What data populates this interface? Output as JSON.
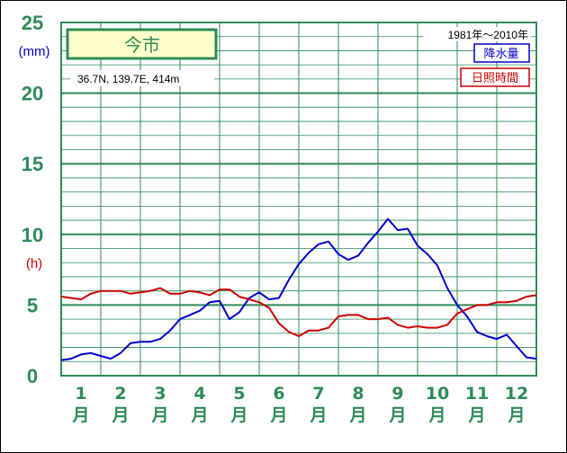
{
  "colors": {
    "grid": "#2e8b57",
    "precip": "#0000cc",
    "sunshine": "#cc0000",
    "title_bg": "#ffffcc"
  },
  "chart_data": {
    "type": "line",
    "title": "今市",
    "location_text": "36.7N,  139.7E,  414m",
    "period": "1981年〜2010年",
    "y_unit_precip": "(mm)",
    "y_unit_sun": "(h)",
    "ylim": [
      0,
      25
    ],
    "yticks": [
      "0",
      "5",
      "10",
      "15",
      "20",
      "25"
    ],
    "xlim": [
      0.5,
      12.5
    ],
    "month_numbers": [
      "1",
      "2",
      "3",
      "4",
      "5",
      "6",
      "7",
      "8",
      "9",
      "10",
      "11",
      "12"
    ],
    "month_suffix": "月",
    "grid": true,
    "legend_position": "top-right",
    "series": [
      {
        "name": "降水量",
        "color": "#0000cc",
        "x": [
          0.5,
          0.75,
          1.0,
          1.25,
          1.5,
          1.75,
          2.0,
          2.25,
          2.5,
          2.75,
          3.0,
          3.25,
          3.5,
          3.75,
          4.0,
          4.25,
          4.5,
          4.75,
          5.0,
          5.25,
          5.5,
          5.75,
          6.0,
          6.25,
          6.5,
          6.75,
          7.0,
          7.25,
          7.5,
          7.75,
          8.0,
          8.25,
          8.5,
          8.75,
          9.0,
          9.25,
          9.5,
          9.75,
          10.0,
          10.25,
          10.5,
          10.75,
          11.0,
          11.25,
          11.5,
          11.75,
          12.0,
          12.25,
          12.5
        ],
        "values": [
          1.1,
          1.2,
          1.5,
          1.6,
          1.4,
          1.2,
          1.6,
          2.3,
          2.4,
          2.4,
          2.6,
          3.2,
          4.0,
          4.3,
          4.6,
          5.2,
          5.3,
          4.0,
          4.5,
          5.5,
          5.9,
          5.4,
          5.5,
          6.8,
          7.9,
          8.7,
          9.3,
          9.5,
          8.6,
          8.2,
          8.5,
          9.4,
          10.2,
          11.1,
          10.3,
          10.4,
          9.2,
          8.6,
          7.8,
          6.2,
          5.0,
          4.2,
          3.1,
          2.8,
          2.6,
          2.9,
          2.1,
          1.3,
          1.2
        ]
      },
      {
        "name": "日照時間",
        "color": "#cc0000",
        "x": [
          0.5,
          0.75,
          1.0,
          1.25,
          1.5,
          1.75,
          2.0,
          2.25,
          2.5,
          2.75,
          3.0,
          3.25,
          3.5,
          3.75,
          4.0,
          4.25,
          4.5,
          4.75,
          5.0,
          5.25,
          5.5,
          5.75,
          6.0,
          6.25,
          6.5,
          6.75,
          7.0,
          7.25,
          7.5,
          7.75,
          8.0,
          8.25,
          8.5,
          8.75,
          9.0,
          9.25,
          9.5,
          9.75,
          10.0,
          10.25,
          10.5,
          10.75,
          11.0,
          11.25,
          11.5,
          11.75,
          12.0,
          12.25,
          12.5
        ],
        "values": [
          5.6,
          5.5,
          5.4,
          5.8,
          6.0,
          6.0,
          6.0,
          5.8,
          5.9,
          6.0,
          6.2,
          5.8,
          5.8,
          6.0,
          5.9,
          5.7,
          6.1,
          6.1,
          5.6,
          5.4,
          5.2,
          4.8,
          3.7,
          3.1,
          2.8,
          3.2,
          3.2,
          3.4,
          4.2,
          4.3,
          4.3,
          4.0,
          4.0,
          4.1,
          3.6,
          3.4,
          3.5,
          3.4,
          3.4,
          3.6,
          4.4,
          4.7,
          5.0,
          5.0,
          5.2,
          5.2,
          5.3,
          5.6,
          5.7
        ]
      }
    ]
  }
}
